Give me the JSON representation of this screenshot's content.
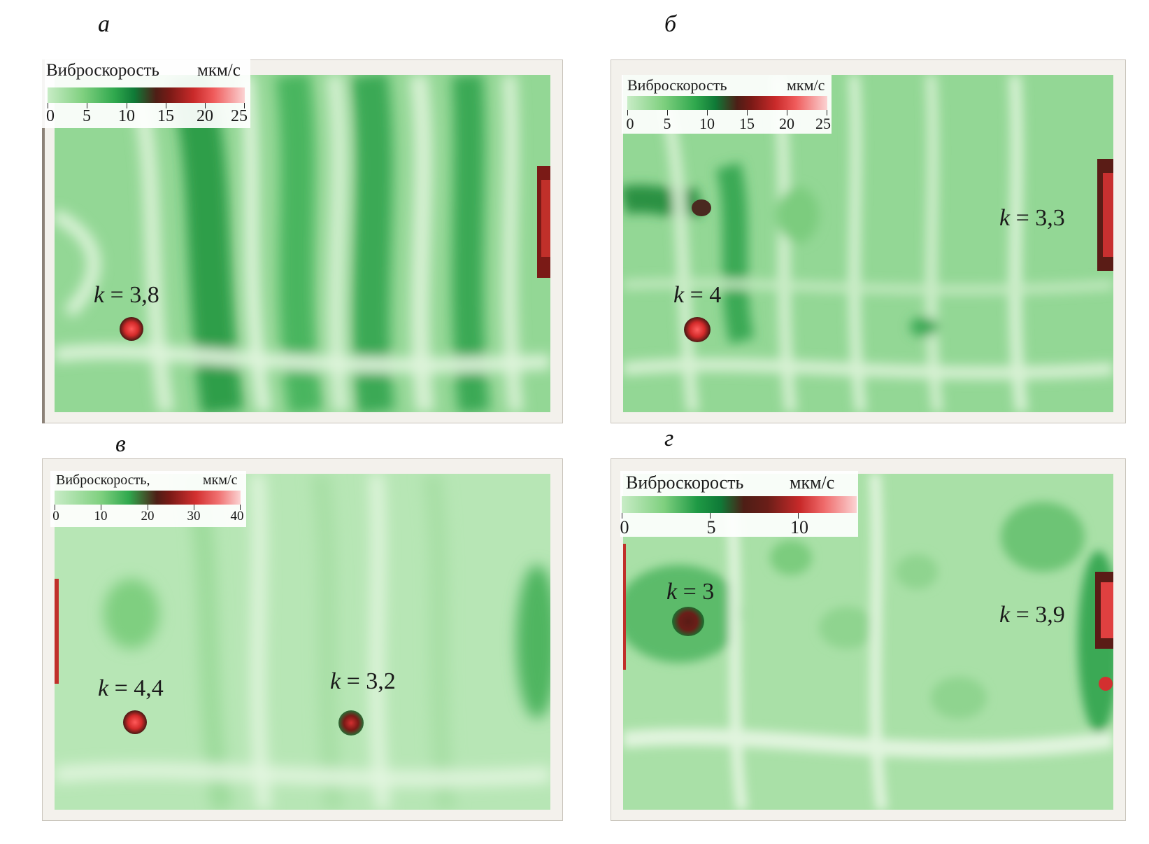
{
  "panels": [
    {
      "letter": "а",
      "legend": {
        "title": "Виброскорость",
        "unit": "мкм/с",
        "ticks": [
          "0",
          "5",
          "10",
          "15",
          "20",
          "25"
        ]
      },
      "labels": [
        {
          "prefix": "k",
          "value": "= 3,8"
        }
      ]
    },
    {
      "letter": "б",
      "legend": {
        "title": "Виброскорость",
        "unit": "мкм/с",
        "ticks": [
          "0",
          "5",
          "10",
          "15",
          "20",
          "25"
        ]
      },
      "labels": [
        {
          "prefix": "k",
          "value": "= 4"
        },
        {
          "prefix": "k",
          "value": "= 3,3"
        }
      ]
    },
    {
      "letter": "в",
      "legend": {
        "title": "Виброскорость,",
        "unit": "мкм/с",
        "ticks": [
          "0",
          "10",
          "20",
          "30",
          "40"
        ]
      },
      "labels": [
        {
          "prefix": "k",
          "value": "= 4,4"
        },
        {
          "prefix": "k",
          "value": "= 3,2"
        }
      ]
    },
    {
      "letter": "г",
      "legend": {
        "title": "Виброскорость",
        "unit": "мкм/с",
        "ticks": [
          "0",
          "5",
          "10"
        ]
      },
      "labels": [
        {
          "prefix": "k",
          "value": "= 3"
        },
        {
          "prefix": "k",
          "value": "= 3,9"
        }
      ]
    }
  ],
  "colors": {
    "field_base": "#93d795",
    "field_dark": "#3fae55",
    "field_light": "#d5f0d2",
    "hotspot_core": "#e23a3a",
    "hotspot_ring": "#4a1a14"
  }
}
